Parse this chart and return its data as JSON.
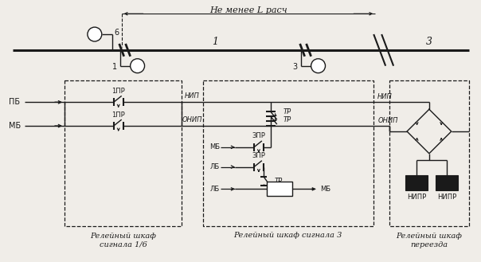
{
  "bg_color": "#f0ede8",
  "line_color": "#1a1a1a",
  "title_text": "Не менее L расч",
  "box1_label": "Релейный шкаф\nсигнала 1/6",
  "box2_label": "Релейный шкаф сигнала 3",
  "box3_label": "Релейный шкаф\nпереезда",
  "label_PB": "ПБ",
  "label_MB": "МБ",
  "label_LB": "ЛБ",
  "label_1PR": "1ПР",
  "label_3PR": "ЗПР",
  "label_TR": "ТР",
  "label_NIP": "НИП",
  "label_ONIP": "ОНИП",
  "label_NIPR1": "НИПР",
  "label_NIPR2": "НИПР"
}
